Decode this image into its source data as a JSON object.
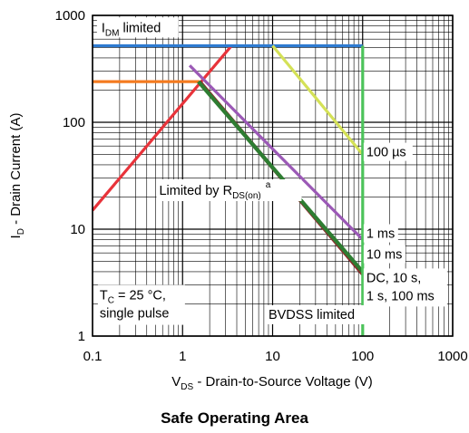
{
  "caption": "Safe Operating Area",
  "chart_data": {
    "type": "line",
    "title": "Safe Operating Area",
    "xlabel": {
      "main": "V",
      "sub": "DS",
      "rest": " - Drain-to-Source Voltage (V)"
    },
    "ylabel": {
      "main": "I",
      "sub": "D",
      "rest": " - Drain Current (A)"
    },
    "x_scale": "log",
    "y_scale": "log",
    "xlim": [
      0.1,
      1000
    ],
    "ylim": [
      1,
      1000
    ],
    "x_ticks": [
      {
        "v": 0.1,
        "label": "0.1"
      },
      {
        "v": 1,
        "label": "1"
      },
      {
        "v": 10,
        "label": "10"
      },
      {
        "v": 100,
        "label": "100"
      },
      {
        "v": 1000,
        "label": "1000"
      }
    ],
    "y_ticks": [
      {
        "v": 1,
        "label": "1"
      },
      {
        "v": 10,
        "label": "10"
      },
      {
        "v": 100,
        "label": "100"
      },
      {
        "v": 1000,
        "label": "1000"
      }
    ],
    "grid": true,
    "series": [
      {
        "color": "#e8333a",
        "points": [
          [
            0.1,
            15
          ],
          [
            3.5,
            520
          ]
        ]
      },
      {
        "color": "#f47b20",
        "points": [
          [
            0.1,
            240
          ],
          [
            1.55,
            240
          ]
        ]
      },
      {
        "color": "#2e7bd1",
        "points": [
          [
            0.1,
            520
          ],
          [
            100,
            520
          ]
        ]
      },
      {
        "color": "#d4e157",
        "points": [
          [
            10,
            520
          ],
          [
            100,
            50
          ]
        ]
      },
      {
        "color": "#9b59b6",
        "points": [
          [
            1.2,
            340
          ],
          [
            100,
            8
          ]
        ]
      },
      {
        "color": "#8b2d2d",
        "points": [
          [
            1.55,
            240
          ],
          [
            100,
            3.8
          ]
        ]
      },
      {
        "color": "#2e7d32",
        "points": [
          [
            1.5,
            240
          ],
          [
            100,
            4.0
          ]
        ]
      },
      {
        "color": "#4cc35a",
        "points": [
          [
            100,
            520
          ],
          [
            100,
            1
          ]
        ]
      }
    ],
    "annotations": [
      {
        "id": "idm",
        "main": "I",
        "sub": "DM",
        "rest": " limited",
        "x": 0.12,
        "y": 700
      },
      {
        "id": "rds",
        "main": "Limited by R",
        "sub": "DS(on)",
        "sup": "a",
        "x": 0.55,
        "y": 21
      },
      {
        "id": "us100",
        "text": "100 µs",
        "x": 110,
        "y": 48
      },
      {
        "id": "ms1",
        "text": "1 ms",
        "x": 110,
        "y": 8.3
      },
      {
        "id": "ms10",
        "text": "10 ms",
        "x": 110,
        "y": 5.3
      },
      {
        "id": "dc",
        "lines": [
          "DC, 10 s,",
          "1 s, 100 ms"
        ],
        "x": 110,
        "y": 3.2
      },
      {
        "id": "tc",
        "main": "T",
        "sub": "C",
        "rest": " = 25 °C,",
        "line2": "single pulse",
        "x": 0.12,
        "y": 2.2
      },
      {
        "id": "bvdss",
        "text": "BVDSS limited",
        "x": 9,
        "y": 1.45
      }
    ]
  }
}
